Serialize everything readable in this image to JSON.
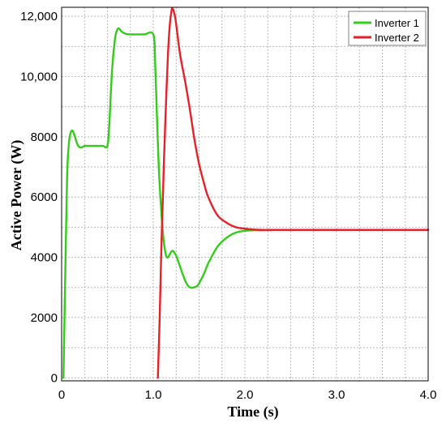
{
  "chart_data": {
    "type": "line",
    "title": "",
    "xlabel": "Time (s)",
    "ylabel": "Active Power (W)",
    "xlim": [
      0,
      4.0
    ],
    "ylim": [
      -100,
      12300
    ],
    "grid": true,
    "legend_position": "top-right",
    "x_ticks": [
      0,
      1.0,
      2.0,
      3.0,
      4.0
    ],
    "x_tick_labels": [
      "0",
      "1.0",
      "2.0",
      "3.0",
      "4.0"
    ],
    "y_ticks": [
      0,
      2000,
      4000,
      6000,
      8000,
      10000,
      12000
    ],
    "y_tick_labels": [
      "0",
      "2000",
      "4000",
      "6000",
      "8000",
      "10,000",
      "12,000"
    ],
    "series": [
      {
        "name": "Inverter 1",
        "color": "#33cc1a",
        "x": [
          0.02,
          0.04,
          0.06,
          0.08,
          0.1,
          0.12,
          0.14,
          0.16,
          0.18,
          0.2,
          0.22,
          0.25,
          0.3,
          0.35,
          0.4,
          0.45,
          0.5,
          0.52,
          0.55,
          0.58,
          0.6,
          0.62,
          0.64,
          0.66,
          0.7,
          0.75,
          0.8,
          0.9,
          1.0,
          1.02,
          1.04,
          1.06,
          1.08,
          1.1,
          1.12,
          1.14,
          1.16,
          1.18,
          1.2,
          1.22,
          1.25,
          1.28,
          1.32,
          1.36,
          1.4,
          1.44,
          1.48,
          1.52,
          1.56,
          1.6,
          1.7,
          1.8,
          1.9,
          2.0,
          2.1,
          2.2,
          2.3,
          2.5,
          3.0,
          4.0
        ],
        "y": [
          0,
          3500,
          6700,
          7800,
          8150,
          8200,
          8050,
          7850,
          7700,
          7650,
          7650,
          7700,
          7700,
          7700,
          7700,
          7700,
          7700,
          8400,
          10200,
          11200,
          11500,
          11600,
          11550,
          11480,
          11420,
          11400,
          11400,
          11400,
          11400,
          10500,
          8700,
          7000,
          5900,
          5000,
          4400,
          4050,
          4000,
          4100,
          4200,
          4200,
          4050,
          3800,
          3450,
          3150,
          3000,
          3000,
          3050,
          3250,
          3500,
          3800,
          4350,
          4650,
          4820,
          4880,
          4900,
          4900,
          4910,
          4910,
          4910,
          4910
        ]
      },
      {
        "name": "Inverter 2",
        "color": "#e8202a",
        "x": [
          1.05,
          1.07,
          1.09,
          1.1,
          1.12,
          1.14,
          1.16,
          1.18,
          1.2,
          1.21,
          1.22,
          1.24,
          1.26,
          1.28,
          1.3,
          1.35,
          1.4,
          1.45,
          1.5,
          1.55,
          1.6,
          1.7,
          1.8,
          1.9,
          2.0,
          2.1,
          2.2,
          2.3,
          2.5,
          3.0,
          4.0
        ],
        "y": [
          0,
          2000,
          4500,
          5500,
          7500,
          9200,
          10700,
          11700,
          12200,
          12250,
          12200,
          11950,
          11500,
          11000,
          10600,
          9800,
          8900,
          7900,
          7100,
          6500,
          6000,
          5400,
          5150,
          5000,
          4950,
          4920,
          4910,
          4910,
          4910,
          4910,
          4910
        ]
      }
    ]
  }
}
